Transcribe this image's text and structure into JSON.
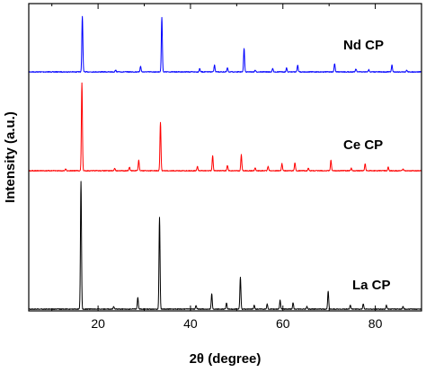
{
  "chart_data": {
    "type": "line",
    "xlabel": "2θ (degree)",
    "ylabel": "Intensity (a.u.)",
    "xlim": [
      5,
      90
    ],
    "xticks": [
      20,
      40,
      60,
      80
    ],
    "y_ticks_labeled": false,
    "grid": false,
    "legend": "none",
    "series": [
      {
        "name": "Nd CP",
        "color": "#0000ff",
        "baseline": 0.0,
        "peaks": [
          {
            "x": 16.6,
            "y": 100
          },
          {
            "x": 23.8,
            "y": 3
          },
          {
            "x": 29.2,
            "y": 10
          },
          {
            "x": 33.8,
            "y": 98
          },
          {
            "x": 42.0,
            "y": 6
          },
          {
            "x": 45.2,
            "y": 12
          },
          {
            "x": 48.0,
            "y": 7
          },
          {
            "x": 51.6,
            "y": 42
          },
          {
            "x": 54.0,
            "y": 3
          },
          {
            "x": 57.8,
            "y": 6
          },
          {
            "x": 60.8,
            "y": 7
          },
          {
            "x": 63.2,
            "y": 12
          },
          {
            "x": 71.2,
            "y": 15
          },
          {
            "x": 75.8,
            "y": 5
          },
          {
            "x": 78.6,
            "y": 4
          },
          {
            "x": 83.6,
            "y": 12
          },
          {
            "x": 86.8,
            "y": 3
          }
        ]
      },
      {
        "name": "Ce CP",
        "color": "#ff0000",
        "baseline": 0.0,
        "peaks": [
          {
            "x": 13.0,
            "y": 2
          },
          {
            "x": 16.5,
            "y": 100
          },
          {
            "x": 23.6,
            "y": 3
          },
          {
            "x": 26.8,
            "y": 4
          },
          {
            "x": 28.8,
            "y": 12
          },
          {
            "x": 33.5,
            "y": 55
          },
          {
            "x": 41.5,
            "y": 5
          },
          {
            "x": 44.8,
            "y": 17
          },
          {
            "x": 48.0,
            "y": 6
          },
          {
            "x": 51.0,
            "y": 18
          },
          {
            "x": 54.0,
            "y": 3
          },
          {
            "x": 56.8,
            "y": 5
          },
          {
            "x": 59.8,
            "y": 8
          },
          {
            "x": 62.6,
            "y": 9
          },
          {
            "x": 65.5,
            "y": 3
          },
          {
            "x": 70.4,
            "y": 12
          },
          {
            "x": 74.8,
            "y": 3
          },
          {
            "x": 77.8,
            "y": 8
          },
          {
            "x": 82.8,
            "y": 4
          },
          {
            "x": 86.0,
            "y": 2
          }
        ]
      },
      {
        "name": "La CP",
        "color": "#000000",
        "baseline": 0.0,
        "peaks": [
          {
            "x": 16.3,
            "y": 100
          },
          {
            "x": 23.4,
            "y": 2
          },
          {
            "x": 28.6,
            "y": 9
          },
          {
            "x": 33.3,
            "y": 72
          },
          {
            "x": 41.2,
            "y": 3
          },
          {
            "x": 44.6,
            "y": 12
          },
          {
            "x": 47.8,
            "y": 5
          },
          {
            "x": 50.8,
            "y": 25
          },
          {
            "x": 53.8,
            "y": 3
          },
          {
            "x": 56.6,
            "y": 4
          },
          {
            "x": 59.4,
            "y": 7
          },
          {
            "x": 62.2,
            "y": 5
          },
          {
            "x": 65.2,
            "y": 2
          },
          {
            "x": 69.8,
            "y": 14
          },
          {
            "x": 74.6,
            "y": 3
          },
          {
            "x": 77.4,
            "y": 4
          },
          {
            "x": 82.4,
            "y": 3
          },
          {
            "x": 86.0,
            "y": 2
          }
        ]
      }
    ]
  }
}
